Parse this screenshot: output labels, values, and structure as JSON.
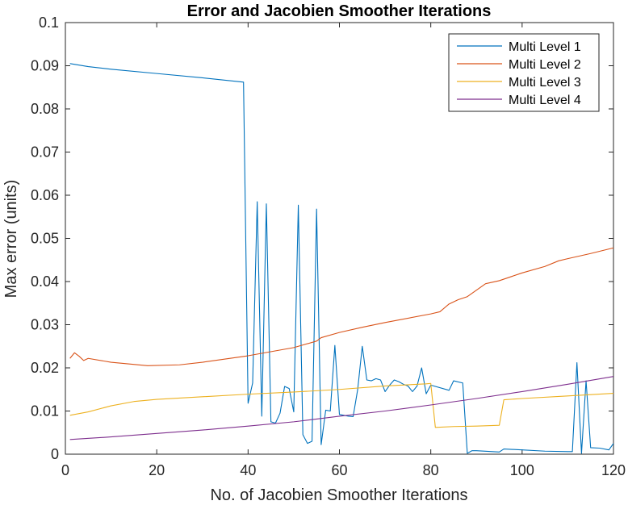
{
  "chart_data": {
    "type": "line",
    "title": "Error and Jacobien Smoother Iterations",
    "xlabel": "No. of Jacobien Smoother Iterations",
    "ylabel": "Max error (units)",
    "xlim": [
      0,
      120
    ],
    "ylim": [
      0,
      0.1
    ],
    "xticks": [
      0,
      20,
      40,
      60,
      80,
      100,
      120
    ],
    "xtick_labels": [
      "0",
      "20",
      "40",
      "60",
      "80",
      "100",
      "120"
    ],
    "yticks": [
      0,
      0.01,
      0.02,
      0.03,
      0.04,
      0.05,
      0.06,
      0.07,
      0.08,
      0.09,
      0.1
    ],
    "ytick_labels": [
      "0",
      "0.01",
      "0.02",
      "0.03",
      "0.04",
      "0.05",
      "0.06",
      "0.07",
      "0.08",
      "0.09",
      "0.1"
    ],
    "grid": false,
    "legend_position": "top-right",
    "series": [
      {
        "name": "Multi Level 1",
        "color": "#0072BD",
        "points": [
          [
            1,
            0.0905
          ],
          [
            5,
            0.0898
          ],
          [
            10,
            0.0892
          ],
          [
            20,
            0.0882
          ],
          [
            30,
            0.0872
          ],
          [
            39,
            0.0862
          ],
          [
            40,
            0.0118
          ],
          [
            41,
            0.0165
          ],
          [
            42,
            0.0585
          ],
          [
            43,
            0.0088
          ],
          [
            44,
            0.058
          ],
          [
            45,
            0.0075
          ],
          [
            46,
            0.0072
          ],
          [
            47,
            0.0095
          ],
          [
            48,
            0.0157
          ],
          [
            49,
            0.0152
          ],
          [
            50,
            0.0098
          ],
          [
            51,
            0.0577
          ],
          [
            52,
            0.0045
          ],
          [
            53,
            0.0025
          ],
          [
            54,
            0.003
          ],
          [
            55,
            0.0568
          ],
          [
            56,
            0.0022
          ],
          [
            57,
            0.0102
          ],
          [
            58,
            0.01
          ],
          [
            59,
            0.0252
          ],
          [
            60,
            0.0092
          ],
          [
            61,
            0.009
          ],
          [
            62,
            0.0088
          ],
          [
            63,
            0.0087
          ],
          [
            64,
            0.015
          ],
          [
            65,
            0.025
          ],
          [
            66,
            0.0172
          ],
          [
            67,
            0.017
          ],
          [
            68,
            0.0175
          ],
          [
            69,
            0.0172
          ],
          [
            70,
            0.0145
          ],
          [
            71,
            0.016
          ],
          [
            72,
            0.0172
          ],
          [
            73,
            0.0168
          ],
          [
            74,
            0.0162
          ],
          [
            75,
            0.0158
          ],
          [
            76,
            0.0145
          ],
          [
            77,
            0.0158
          ],
          [
            78,
            0.02
          ],
          [
            79,
            0.014
          ],
          [
            80,
            0.016
          ],
          [
            84,
            0.0148
          ],
          [
            85,
            0.017
          ],
          [
            87,
            0.0165
          ],
          [
            88,
            0.0002
          ],
          [
            89,
            0.0008
          ],
          [
            90,
            0.0008
          ],
          [
            95,
            0.0005
          ],
          [
            96,
            0.0012
          ],
          [
            100,
            0.001
          ],
          [
            105,
            0.0007
          ],
          [
            110,
            0.0006
          ],
          [
            111,
            0.0006
          ],
          [
            112,
            0.0212
          ],
          [
            113,
            0.0002
          ],
          [
            114,
            0.017
          ],
          [
            115,
            0.0015
          ],
          [
            117,
            0.0014
          ],
          [
            119,
            0.001
          ],
          [
            120,
            0.0025
          ]
        ]
      },
      {
        "name": "Multi Level 2",
        "color": "#D95319",
        "points": [
          [
            1,
            0.0222
          ],
          [
            2,
            0.0235
          ],
          [
            3,
            0.0227
          ],
          [
            4,
            0.0217
          ],
          [
            5,
            0.0222
          ],
          [
            10,
            0.0213
          ],
          [
            18,
            0.0205
          ],
          [
            25,
            0.0207
          ],
          [
            30,
            0.0213
          ],
          [
            40,
            0.0228
          ],
          [
            50,
            0.0247
          ],
          [
            55,
            0.0262
          ],
          [
            56,
            0.027
          ],
          [
            60,
            0.0282
          ],
          [
            65,
            0.0294
          ],
          [
            70,
            0.0305
          ],
          [
            80,
            0.0325
          ],
          [
            82,
            0.033
          ],
          [
            84,
            0.0348
          ],
          [
            86,
            0.0358
          ],
          [
            88,
            0.0365
          ],
          [
            90,
            0.038
          ],
          [
            92,
            0.0395
          ],
          [
            95,
            0.0402
          ],
          [
            100,
            0.042
          ],
          [
            105,
            0.0435
          ],
          [
            108,
            0.0448
          ],
          [
            110,
            0.0453
          ],
          [
            115,
            0.0465
          ],
          [
            120,
            0.0478
          ]
        ]
      },
      {
        "name": "Multi Level 3",
        "color": "#EDB120",
        "points": [
          [
            1,
            0.009
          ],
          [
            5,
            0.0098
          ],
          [
            10,
            0.0112
          ],
          [
            15,
            0.0122
          ],
          [
            20,
            0.0127
          ],
          [
            30,
            0.0133
          ],
          [
            40,
            0.0139
          ],
          [
            50,
            0.0144
          ],
          [
            60,
            0.015
          ],
          [
            70,
            0.0158
          ],
          [
            79,
            0.0163
          ],
          [
            80,
            0.0164
          ],
          [
            81,
            0.0062
          ],
          [
            85,
            0.0064
          ],
          [
            90,
            0.0065
          ],
          [
            95,
            0.0067
          ],
          [
            96,
            0.0126
          ],
          [
            100,
            0.0129
          ],
          [
            110,
            0.0135
          ],
          [
            120,
            0.0141
          ]
        ]
      },
      {
        "name": "Multi Level 4",
        "color": "#7E2F8E",
        "points": [
          [
            1,
            0.0034
          ],
          [
            10,
            0.004
          ],
          [
            20,
            0.0048
          ],
          [
            30,
            0.0056
          ],
          [
            40,
            0.0065
          ],
          [
            50,
            0.0075
          ],
          [
            60,
            0.0088
          ],
          [
            70,
            0.01
          ],
          [
            80,
            0.0114
          ],
          [
            90,
            0.0129
          ],
          [
            100,
            0.0145
          ],
          [
            110,
            0.0162
          ],
          [
            120,
            0.018
          ]
        ]
      }
    ]
  }
}
